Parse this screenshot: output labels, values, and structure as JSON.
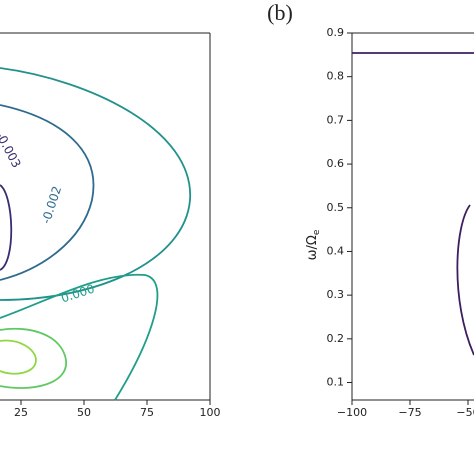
{
  "chart_data": [
    {
      "type": "contour",
      "xlim": [
        -100,
        100
      ],
      "xticks": [
        25,
        50,
        75,
        100
      ],
      "levels": [
        {
          "value": -0.003,
          "label": "-0.003",
          "color": "#3b2c72"
        },
        {
          "value": -0.002,
          "label": "-0.002",
          "color": "#2f6b8e"
        },
        {
          "value": 0,
          "label": "0.000",
          "color": "#1f9e89"
        },
        {
          "value": 0.003,
          "label": "0.003",
          "color": "#8fd744"
        }
      ]
    },
    {
      "type": "contour",
      "label": "(b)",
      "xlim": [
        -100,
        100
      ],
      "xticks": [
        {
          "value": -100,
          "label": "−100"
        },
        {
          "value": -75,
          "label": "−75"
        },
        {
          "value": -50,
          "label": "−50"
        }
      ],
      "ylim": [
        0.06,
        0.9
      ],
      "yticks": [
        0.1,
        0.2,
        0.3,
        0.4,
        0.5,
        0.6,
        0.7,
        0.8,
        0.9
      ],
      "ylabel": {
        "main": "ω/Ω",
        "sub": "e"
      },
      "color": "#3b1f5e"
    }
  ]
}
